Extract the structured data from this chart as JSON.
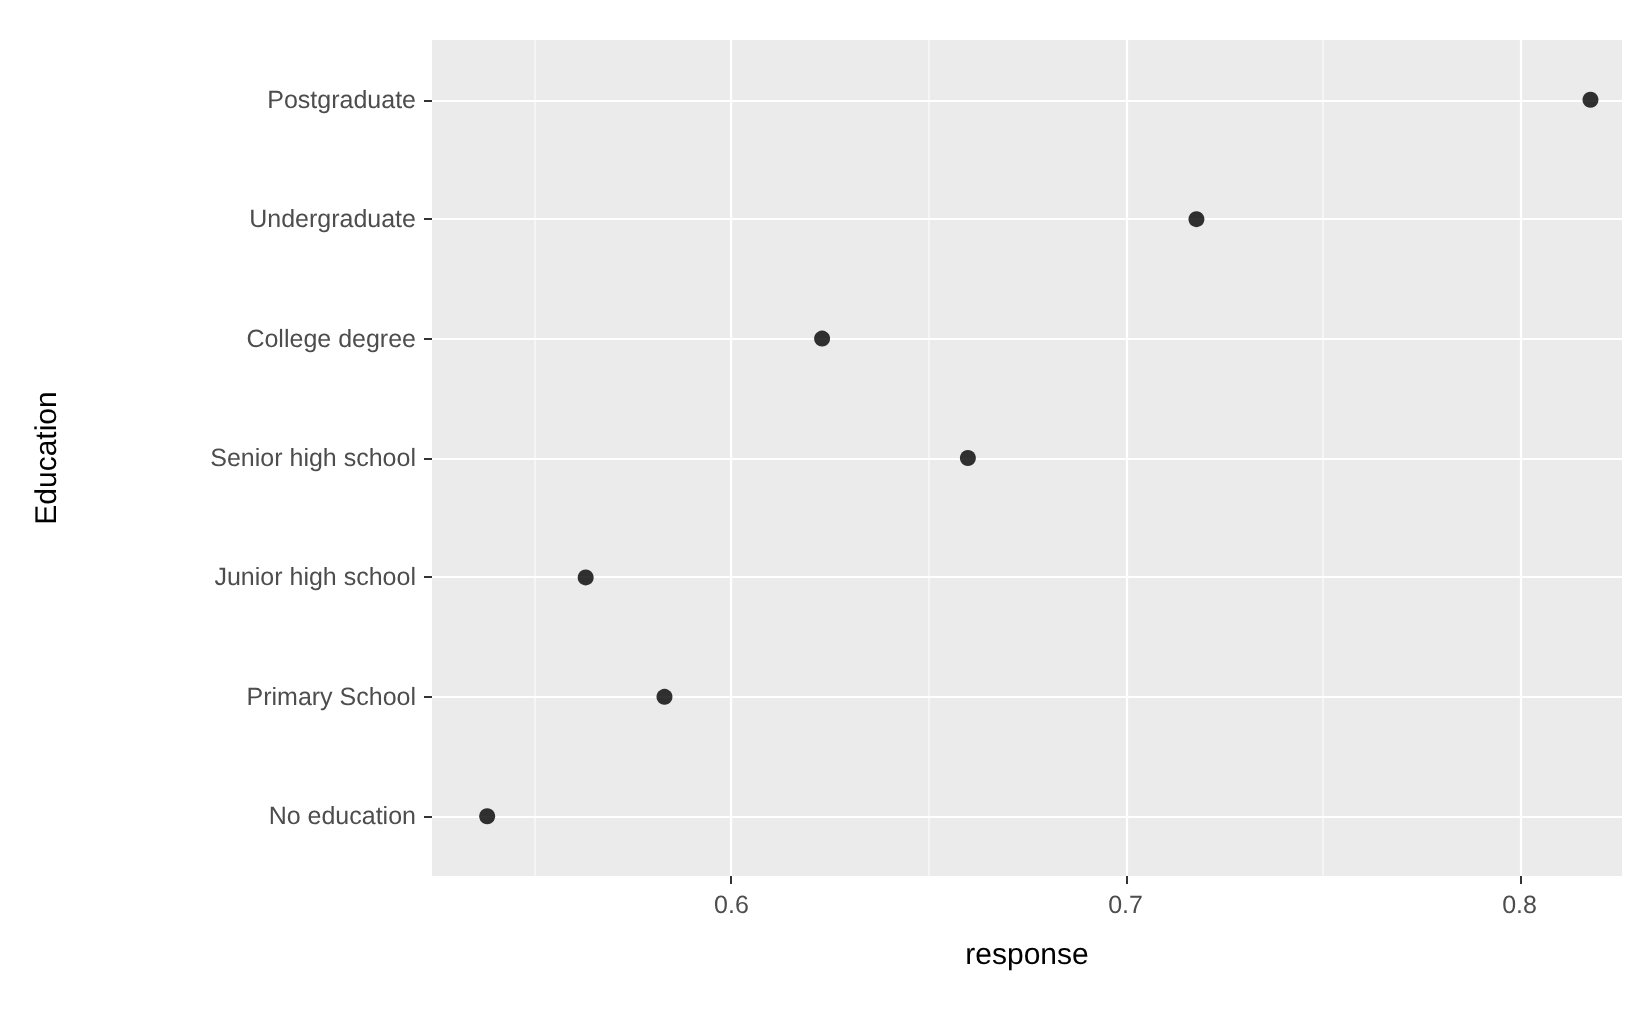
{
  "chart_data": {
    "type": "scatter",
    "xlabel": "response",
    "ylabel": "Education",
    "categories": [
      "Postgraduate",
      "Undergraduate",
      "College degree",
      "Senior high school",
      "Junior high school",
      "Primary School",
      "No education"
    ],
    "values": [
      0.818,
      0.718,
      0.623,
      0.66,
      0.563,
      0.583,
      0.538
    ],
    "color": "#000000",
    "marker": "circle",
    "grid": true,
    "orientation": "horizontal",
    "xlim": [
      0.524,
      0.826
    ],
    "xticks": [
      {
        "value": 0.55,
        "label": null
      },
      0.6,
      {
        "value": 0.65,
        "label": null
      },
      0.7,
      {
        "value": 0.75,
        "label": null
      },
      0.8
    ]
  }
}
